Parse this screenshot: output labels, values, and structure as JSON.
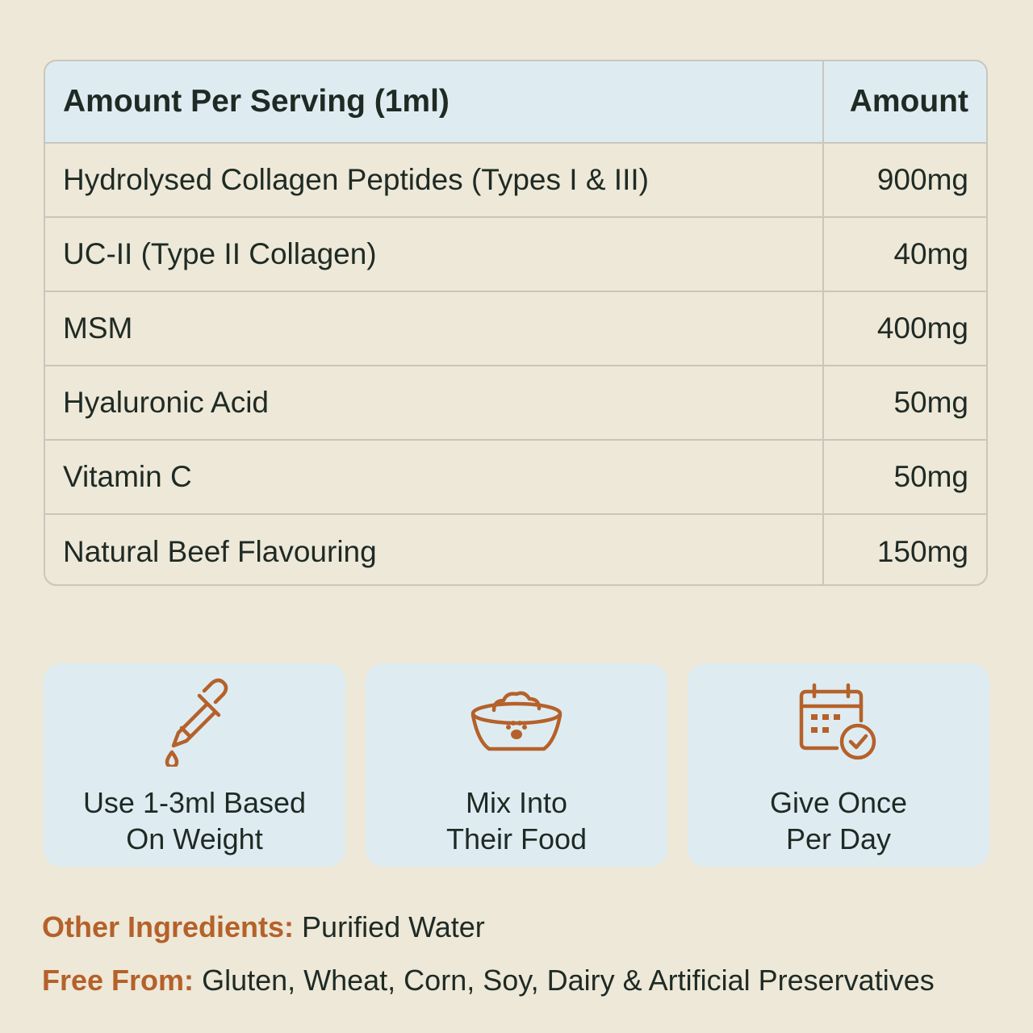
{
  "table": {
    "header": {
      "name": "Amount Per Serving (1ml)",
      "amount": "Amount"
    },
    "rows": [
      {
        "name": "Hydrolysed Collagen Peptides (Types I & III)",
        "amount": "900mg"
      },
      {
        "name": "UC-II (Type II Collagen)",
        "amount": "40mg"
      },
      {
        "name": "MSM",
        "amount": "400mg"
      },
      {
        "name": "Hyaluronic Acid",
        "amount": "50mg"
      },
      {
        "name": "Vitamin C",
        "amount": "50mg"
      },
      {
        "name": "Natural Beef Flavouring",
        "amount": "150mg"
      }
    ]
  },
  "cards": [
    {
      "icon": "dropper-icon",
      "line1": "Use 1-3ml Based",
      "line2": "On Weight"
    },
    {
      "icon": "food-bowl-icon",
      "line1": "Mix Into",
      "line2": "Their Food"
    },
    {
      "icon": "calendar-check-icon",
      "line1": "Give Once",
      "line2": "Per Day"
    }
  ],
  "footer": {
    "other_label": "Other Ingredients:",
    "other_value": "Purified Water",
    "free_label": "Free From:",
    "free_value": "Gluten, Wheat, Corn, Soy, Dairy & Artificial Preservatives"
  },
  "colors": {
    "background": "#ede8d8",
    "header_fill": "#deecf2",
    "card_fill": "#deecf2",
    "accent": "#b5612a",
    "text": "#1f2a24",
    "border": "#c9c6bb"
  }
}
